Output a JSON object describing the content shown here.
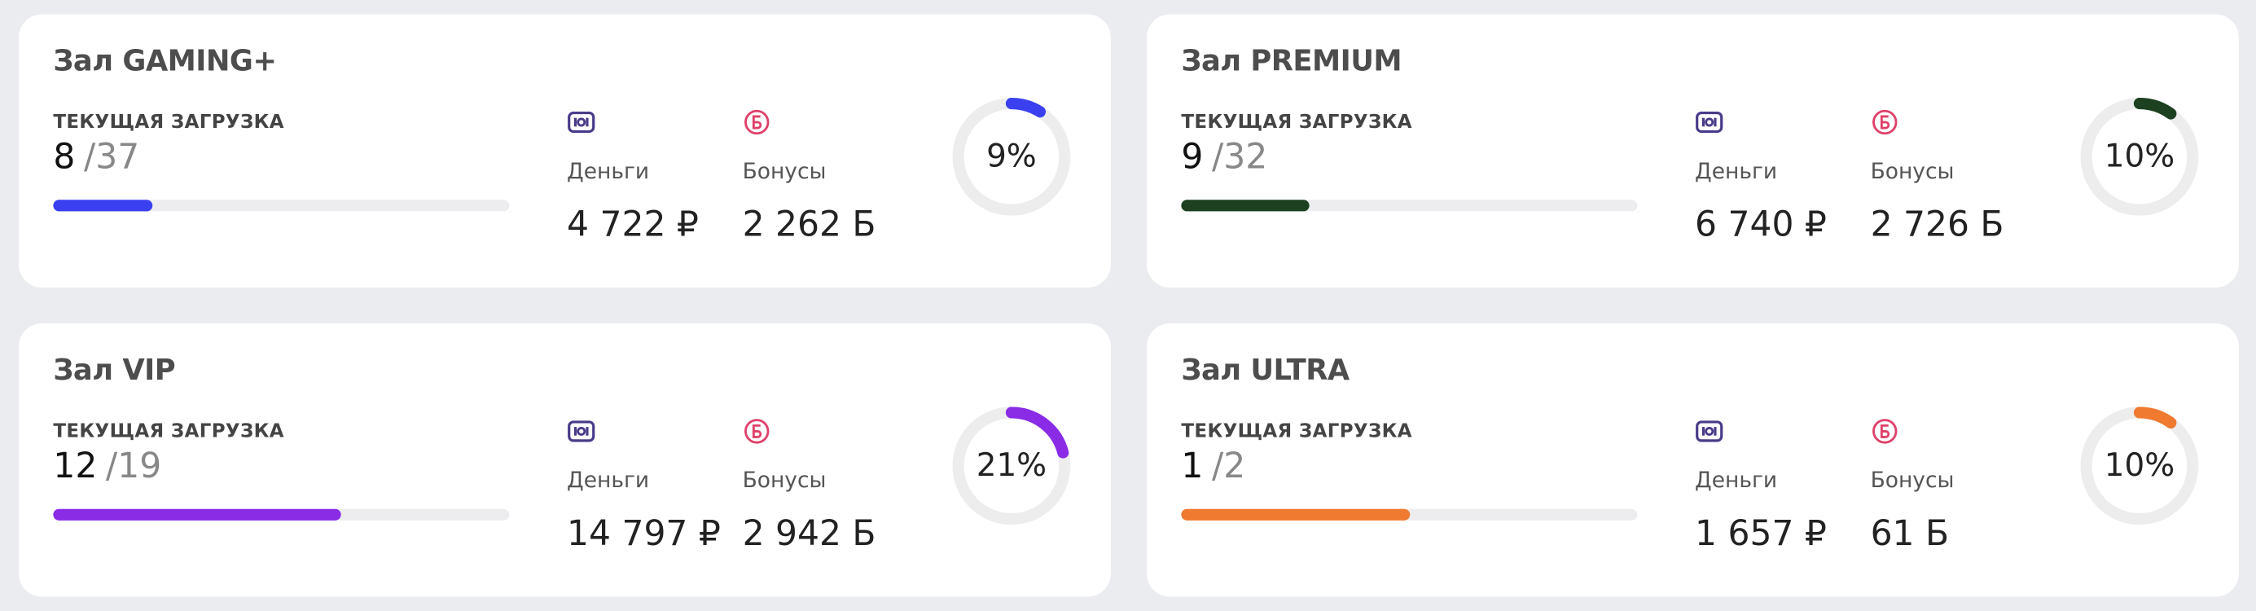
{
  "halls": [
    {
      "title": "Зал GAMING+",
      "load_label": "ТЕКУЩАЯ ЗАГРУЗКА",
      "current": 8,
      "total": 37,
      "money_label": "Деньги",
      "money": "4 722 ₽",
      "bonus_label": "Бонусы",
      "bonus": "2 262 Б",
      "percent": 9,
      "percent_label": "9%",
      "color": "#3a3ff0"
    },
    {
      "title": "Зал PREMIUM",
      "load_label": "ТЕКУЩАЯ ЗАГРУЗКА",
      "current": 9,
      "total": 32,
      "money_label": "Деньги",
      "money": "6 740 ₽",
      "bonus_label": "Бонусы",
      "bonus": "2 726 Б",
      "percent": 10,
      "percent_label": "10%",
      "color": "#1c4020"
    },
    {
      "title": "Зал VIP",
      "load_label": "ТЕКУЩАЯ ЗАГРУЗКА",
      "current": 12,
      "total": 19,
      "money_label": "Деньги",
      "money": "14 797 ₽",
      "bonus_label": "Бонусы",
      "bonus": "2 942 Б",
      "percent": 21,
      "percent_label": "21%",
      "color": "#8a2be6"
    },
    {
      "title": "Зал ULTRA",
      "load_label": "ТЕКУЩАЯ ЗАГРУЗКА",
      "current": 1,
      "total": 2,
      "money_label": "Деньги",
      "money": "1 657 ₽",
      "bonus_label": "Бонусы",
      "bonus": "61 Б",
      "percent": 10,
      "percent_label": "10%",
      "color": "#ef7a30"
    }
  ]
}
